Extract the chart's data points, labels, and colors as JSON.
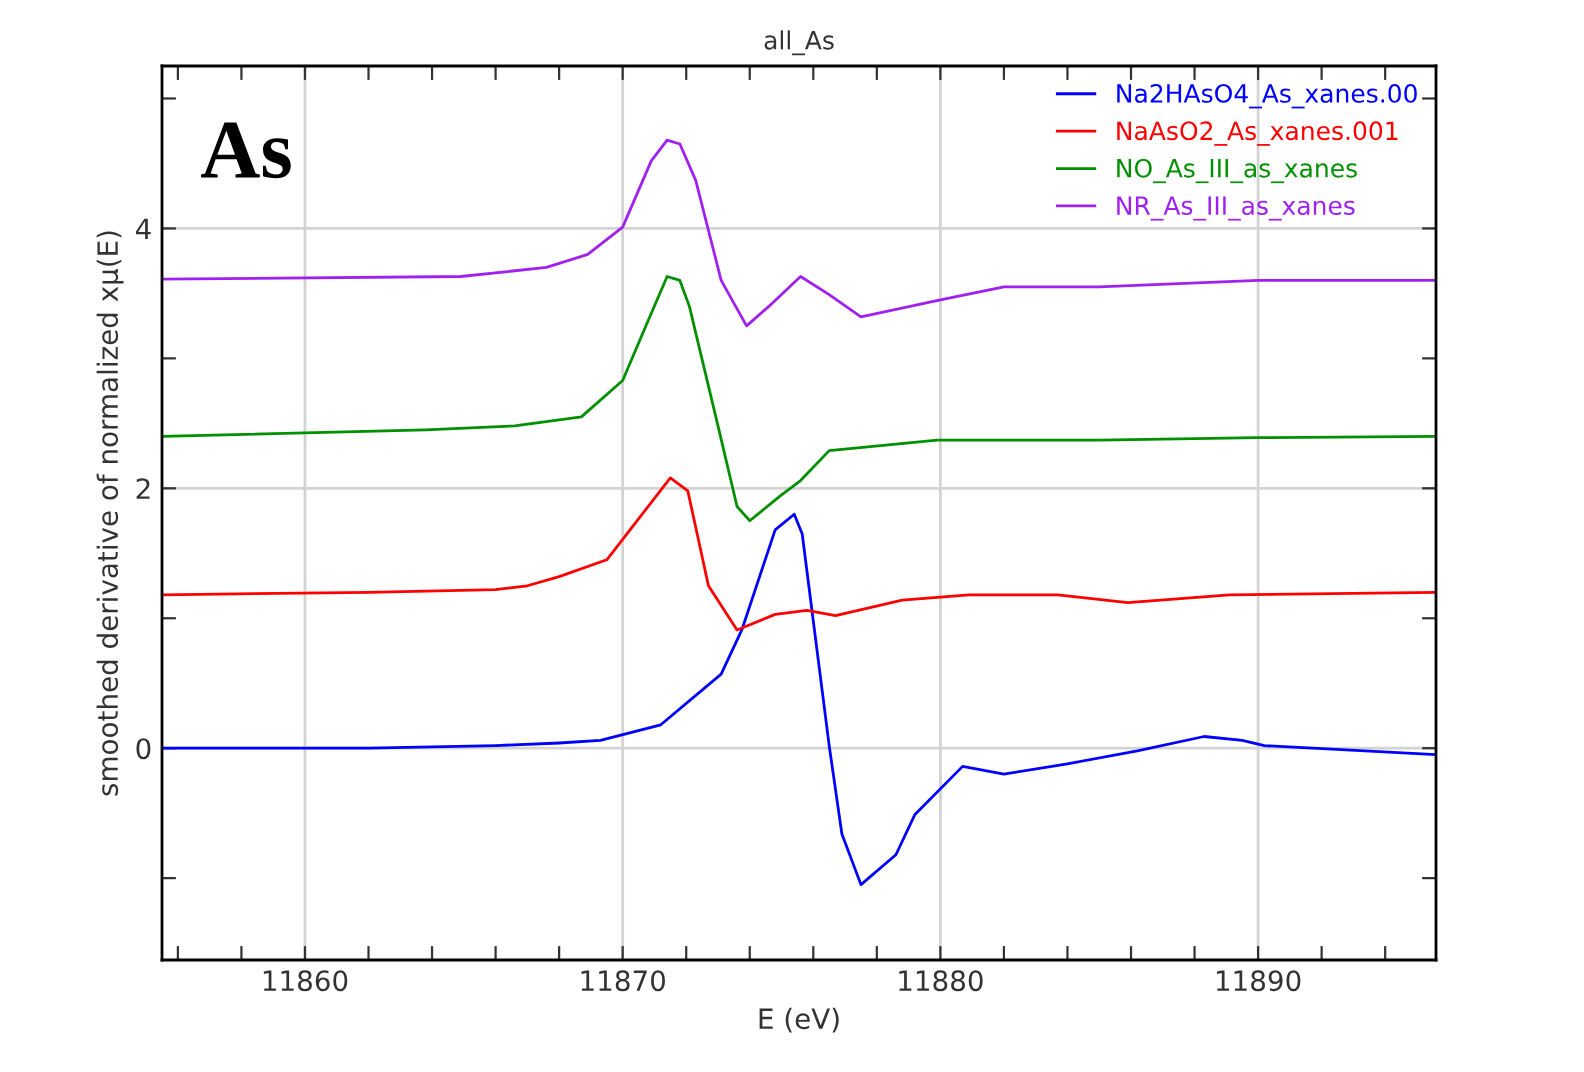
{
  "chart_data": {
    "type": "line",
    "title": "all_As",
    "xlabel": "E (eV)",
    "ylabel": "smoothed derivative of normalized xμ(E)",
    "annotations": [
      "As"
    ],
    "xlim": [
      11855.5,
      11895.6
    ],
    "ylim": [
      -1.63,
      5.25
    ],
    "xticks": [
      {
        "value": 11856,
        "label": null
      },
      {
        "value": 11858,
        "label": null
      },
      11860,
      {
        "value": 11862,
        "label": null
      },
      {
        "value": 11864,
        "label": null
      },
      {
        "value": 11866,
        "label": null
      },
      {
        "value": 11868,
        "label": null
      },
      11870,
      {
        "value": 11872,
        "label": null
      },
      {
        "value": 11874,
        "label": null
      },
      {
        "value": 11876,
        "label": null
      },
      {
        "value": 11878,
        "label": null
      },
      11880,
      {
        "value": 11882,
        "label": null
      },
      {
        "value": 11884,
        "label": null
      },
      {
        "value": 11886,
        "label": null
      },
      {
        "value": 11888,
        "label": null
      },
      11890,
      {
        "value": 11892,
        "label": null
      },
      {
        "value": 11894,
        "label": null
      }
    ],
    "yticks": [
      {
        "value": -1,
        "label": null
      },
      0,
      {
        "value": 1,
        "label": null
      },
      2,
      {
        "value": 3,
        "label": null
      },
      4,
      {
        "value": 5,
        "label": null
      }
    ],
    "grid": true,
    "legend": "top right",
    "line_style": "solid",
    "marker": "none",
    "series": [
      {
        "name": "Na2HAsO4_As_xanes.00",
        "color": "#0000ff",
        "x": [
          11855.5,
          11862,
          11866,
          11868,
          11869.3,
          11871.2,
          11873.1,
          11873.75,
          11874.8,
          11875.4,
          11875.65,
          11876.5,
          11876.9,
          11877.5,
          11878.6,
          11879.2,
          11880.7,
          11882.0,
          11884.0,
          11886.2,
          11888.3,
          11889.5,
          11890.2,
          11895.6
        ],
        "values": [
          0.0,
          0.0,
          0.02,
          0.04,
          0.06,
          0.18,
          0.57,
          0.91,
          1.68,
          1.8,
          1.65,
          0.02,
          -0.66,
          -1.05,
          -0.82,
          -0.51,
          -0.14,
          -0.2,
          -0.12,
          -0.02,
          0.09,
          0.06,
          0.02,
          -0.05
        ]
      },
      {
        "name": "NaAsO2_As_xanes.001",
        "color": "#ff0000",
        "x": [
          11855.5,
          11862,
          11866,
          11867,
          11868,
          11869.5,
          11871.5,
          11872.05,
          11872.7,
          11873.6,
          11874.8,
          11875.8,
          11876.7,
          11878.8,
          11880.9,
          11883.7,
          11885.9,
          11889.1,
          11895.6
        ],
        "values": [
          1.18,
          1.2,
          1.22,
          1.25,
          1.32,
          1.45,
          2.08,
          1.98,
          1.25,
          0.91,
          1.03,
          1.06,
          1.02,
          1.14,
          1.18,
          1.18,
          1.12,
          1.18,
          1.2
        ]
      },
      {
        "name": "NO_As_III_as_xanes",
        "color": "#009000",
        "x": [
          11855.5,
          11863.8,
          11866.6,
          11868.7,
          11870,
          11870.8,
          11871.4,
          11871.8,
          11872.1,
          11873.0,
          11873.6,
          11874.0,
          11875.0,
          11875.6,
          11876.5,
          11878.2,
          11879.9,
          11885,
          11890,
          11895.6
        ],
        "values": [
          2.4,
          2.45,
          2.48,
          2.55,
          2.83,
          3.29,
          3.63,
          3.6,
          3.4,
          2.48,
          1.86,
          1.75,
          1.95,
          2.06,
          2.29,
          2.33,
          2.37,
          2.37,
          2.39,
          2.4
        ]
      },
      {
        "name": "NR_As_III_as_xanes",
        "color": "#a020f0",
        "x": [
          11855.5,
          11864.9,
          11867.6,
          11868.9,
          11870,
          11870.9,
          11871.4,
          11871.8,
          11872.3,
          11873.1,
          11873.9,
          11874.6,
          11875.6,
          11876.5,
          11877.5,
          11880,
          11882,
          11885,
          11890,
          11895.6
        ],
        "values": [
          3.61,
          3.63,
          3.7,
          3.8,
          4.01,
          4.52,
          4.68,
          4.65,
          4.37,
          3.6,
          3.25,
          3.4,
          3.63,
          3.49,
          3.32,
          3.45,
          3.55,
          3.55,
          3.6,
          3.6
        ]
      }
    ]
  }
}
